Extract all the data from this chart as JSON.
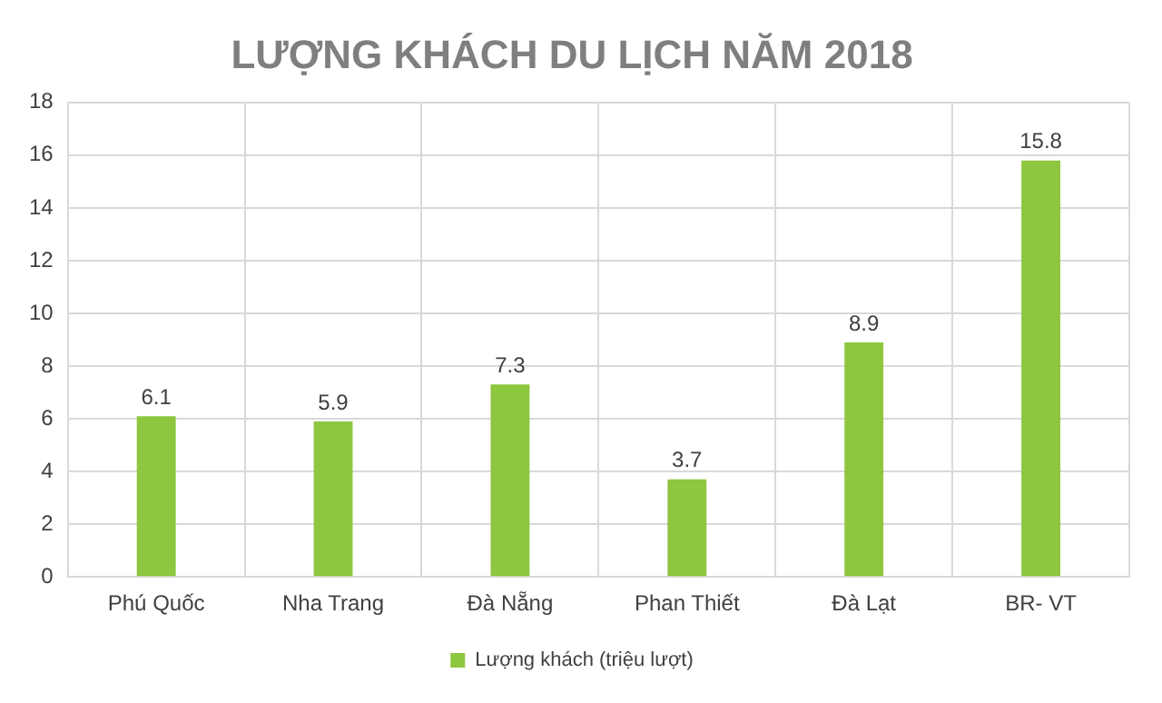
{
  "chart_data": {
    "type": "bar",
    "title": "LƯỢNG KHÁCH DU LỊCH NĂM 2018",
    "categories": [
      "Phú Quốc",
      "Nha Trang",
      "Đà Nẵng",
      "Phan Thiết",
      "Đà Lạt",
      "BR- VT"
    ],
    "series": [
      {
        "name": "Lượng khách (triệu lượt)",
        "color": "#8dc63f",
        "values": [
          6.1,
          5.9,
          7.3,
          3.7,
          8.9,
          15.8
        ]
      }
    ],
    "ylim": [
      0,
      18
    ],
    "yticks": [
      0,
      2,
      4,
      6,
      8,
      10,
      12,
      14,
      16,
      18
    ],
    "grid": true,
    "legend": "bottom",
    "data_labels": true
  }
}
